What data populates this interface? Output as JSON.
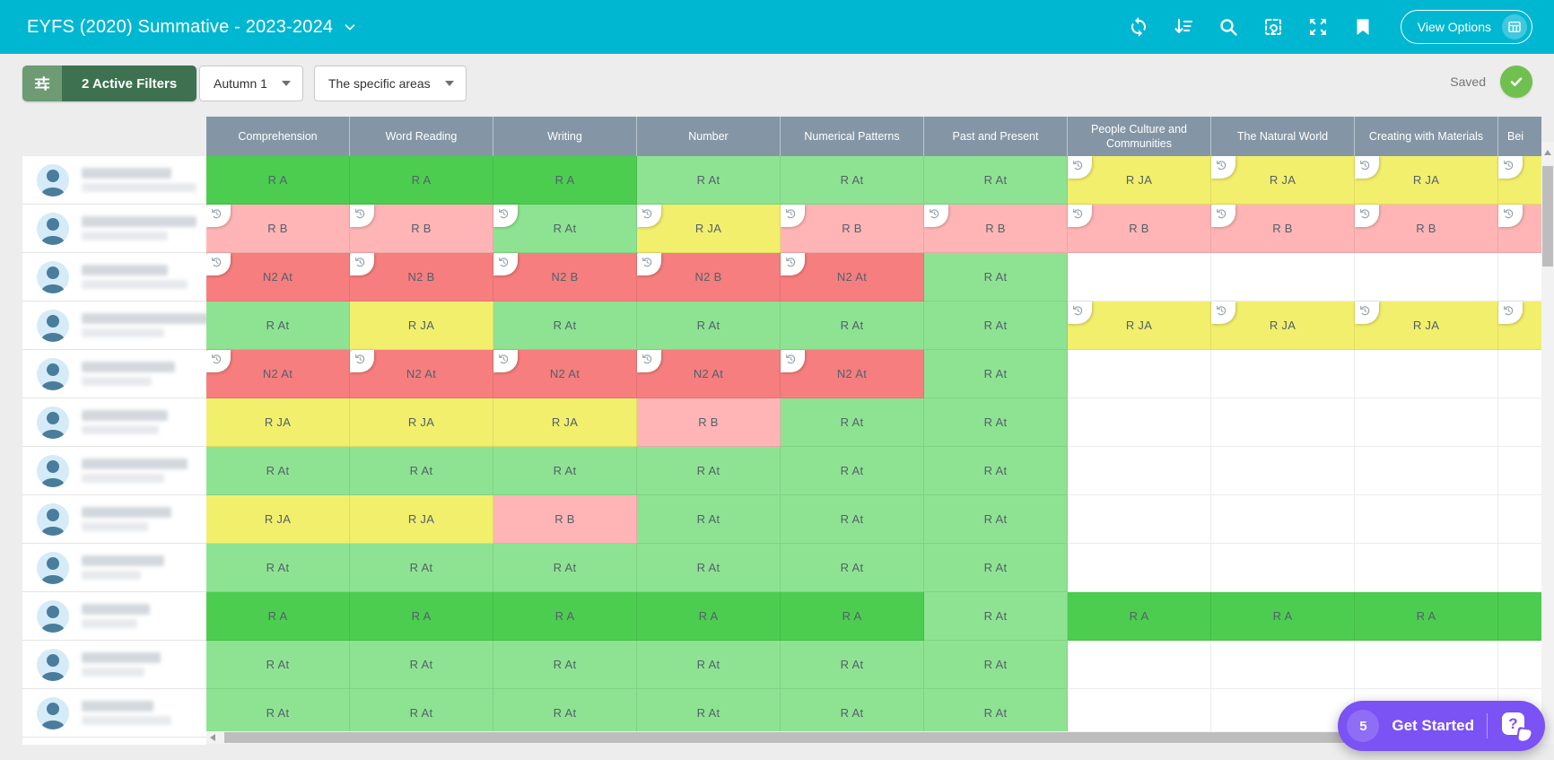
{
  "colors": {
    "appbar": "#00b7d2",
    "header": "#8496a6",
    "ca": "#4ccd50",
    "cat": "#8ee392",
    "cja": "#f2ef6d",
    "cb": "#ffb5b5",
    "cn2": "#f67e7e",
    "saved": "#70c04f",
    "purple": "#7b52f3",
    "filtlight": "#6e9a74",
    "filtdark": "#3e7150"
  },
  "app_bar": {
    "title": "EYFS (2020) Summative - 2023-2024",
    "icons": [
      "sync-icon",
      "sort-icon",
      "search-icon",
      "edit-grid-icon",
      "expand-icon",
      "bookmark-icon"
    ],
    "view_options_label": "View Options"
  },
  "toolbar": {
    "active_filters_label": "2 Active Filters",
    "term_dropdown_value": "Autumn 1",
    "area_dropdown_value": "The specific areas",
    "saved_label": "Saved"
  },
  "grid": {
    "columns": [
      "Comprehension",
      "Word Reading",
      "Writing",
      "Number",
      "Numerical Patterns",
      "Past and Present",
      "People Culture and Communities",
      "The Natural World",
      "Creating with Materials",
      "Bei"
    ],
    "students": [
      {
        "w1": 100,
        "w2": 128
      },
      {
        "w1": 128,
        "w2": 96
      },
      {
        "w1": 96,
        "w2": 118
      },
      {
        "w1": 150,
        "w2": 92
      },
      {
        "w1": 104,
        "w2": 78
      },
      {
        "w1": 96,
        "w2": 86
      },
      {
        "w1": 118,
        "w2": 92
      },
      {
        "w1": 100,
        "w2": 74
      },
      {
        "w1": 92,
        "w2": 66
      },
      {
        "w1": 76,
        "w2": 62
      },
      {
        "w1": 88,
        "w2": 70
      },
      {
        "w1": 80,
        "w2": 100
      }
    ],
    "rows": [
      {
        "cells": [
          {
            "v": "R A",
            "c": "a"
          },
          {
            "v": "R A",
            "c": "a"
          },
          {
            "v": "R A",
            "c": "a"
          },
          {
            "v": "R At",
            "c": "at"
          },
          {
            "v": "R At",
            "c": "at"
          },
          {
            "v": "R At",
            "c": "at"
          },
          {
            "v": "R JA",
            "c": "ja",
            "h": 1
          },
          {
            "v": "R JA",
            "c": "ja",
            "h": 1
          },
          {
            "v": "R JA",
            "c": "ja",
            "h": 1
          },
          {
            "v": "",
            "c": "ja",
            "h": 1
          }
        ]
      },
      {
        "cells": [
          {
            "v": "R B",
            "c": "b",
            "h": 1
          },
          {
            "v": "R B",
            "c": "b",
            "h": 1
          },
          {
            "v": "R At",
            "c": "at",
            "h": 1
          },
          {
            "v": "R JA",
            "c": "ja",
            "h": 1
          },
          {
            "v": "R B",
            "c": "b",
            "h": 1
          },
          {
            "v": "R B",
            "c": "b",
            "h": 1
          },
          {
            "v": "R B",
            "c": "b",
            "h": 1
          },
          {
            "v": "R B",
            "c": "b",
            "h": 1
          },
          {
            "v": "R B",
            "c": "b",
            "h": 1
          },
          {
            "v": "",
            "c": "b",
            "h": 1
          }
        ]
      },
      {
        "cells": [
          {
            "v": "N2 At",
            "c": "n2",
            "h": 1
          },
          {
            "v": "N2 B",
            "c": "n2",
            "h": 1
          },
          {
            "v": "N2 B",
            "c": "n2",
            "h": 1
          },
          {
            "v": "N2 B",
            "c": "n2",
            "h": 1
          },
          {
            "v": "N2 At",
            "c": "n2",
            "h": 1
          },
          {
            "v": "R At",
            "c": "at"
          },
          {
            "v": "",
            "c": ""
          },
          {
            "v": "",
            "c": ""
          },
          {
            "v": "",
            "c": ""
          },
          {
            "v": "",
            "c": ""
          }
        ]
      },
      {
        "cells": [
          {
            "v": "R At",
            "c": "at"
          },
          {
            "v": "R JA",
            "c": "ja"
          },
          {
            "v": "R At",
            "c": "at"
          },
          {
            "v": "R At",
            "c": "at"
          },
          {
            "v": "R At",
            "c": "at"
          },
          {
            "v": "R At",
            "c": "at"
          },
          {
            "v": "R JA",
            "c": "ja",
            "h": 1
          },
          {
            "v": "R JA",
            "c": "ja",
            "h": 1
          },
          {
            "v": "R JA",
            "c": "ja",
            "h": 1
          },
          {
            "v": "",
            "c": "ja",
            "h": 1
          }
        ]
      },
      {
        "cells": [
          {
            "v": "N2 At",
            "c": "n2",
            "h": 1
          },
          {
            "v": "N2 At",
            "c": "n2",
            "h": 1
          },
          {
            "v": "N2 At",
            "c": "n2",
            "h": 1
          },
          {
            "v": "N2 At",
            "c": "n2",
            "h": 1
          },
          {
            "v": "N2 At",
            "c": "n2",
            "h": 1
          },
          {
            "v": "R At",
            "c": "at"
          },
          {
            "v": "",
            "c": ""
          },
          {
            "v": "",
            "c": ""
          },
          {
            "v": "",
            "c": ""
          },
          {
            "v": "",
            "c": ""
          }
        ]
      },
      {
        "cells": [
          {
            "v": "R JA",
            "c": "ja"
          },
          {
            "v": "R JA",
            "c": "ja"
          },
          {
            "v": "R JA",
            "c": "ja"
          },
          {
            "v": "R B",
            "c": "b"
          },
          {
            "v": "R At",
            "c": "at"
          },
          {
            "v": "R At",
            "c": "at"
          },
          {
            "v": "",
            "c": ""
          },
          {
            "v": "",
            "c": ""
          },
          {
            "v": "",
            "c": ""
          },
          {
            "v": "",
            "c": ""
          }
        ]
      },
      {
        "cells": [
          {
            "v": "R At",
            "c": "at"
          },
          {
            "v": "R At",
            "c": "at"
          },
          {
            "v": "R At",
            "c": "at"
          },
          {
            "v": "R At",
            "c": "at"
          },
          {
            "v": "R At",
            "c": "at"
          },
          {
            "v": "R At",
            "c": "at"
          },
          {
            "v": "",
            "c": ""
          },
          {
            "v": "",
            "c": ""
          },
          {
            "v": "",
            "c": ""
          },
          {
            "v": "",
            "c": ""
          }
        ]
      },
      {
        "cells": [
          {
            "v": "R JA",
            "c": "ja"
          },
          {
            "v": "R JA",
            "c": "ja"
          },
          {
            "v": "R B",
            "c": "b"
          },
          {
            "v": "R At",
            "c": "at"
          },
          {
            "v": "R At",
            "c": "at"
          },
          {
            "v": "R At",
            "c": "at"
          },
          {
            "v": "",
            "c": ""
          },
          {
            "v": "",
            "c": ""
          },
          {
            "v": "",
            "c": ""
          },
          {
            "v": "",
            "c": ""
          }
        ]
      },
      {
        "cells": [
          {
            "v": "R At",
            "c": "at"
          },
          {
            "v": "R At",
            "c": "at"
          },
          {
            "v": "R At",
            "c": "at"
          },
          {
            "v": "R At",
            "c": "at"
          },
          {
            "v": "R At",
            "c": "at"
          },
          {
            "v": "R At",
            "c": "at"
          },
          {
            "v": "",
            "c": ""
          },
          {
            "v": "",
            "c": ""
          },
          {
            "v": "",
            "c": ""
          },
          {
            "v": "",
            "c": ""
          }
        ]
      },
      {
        "cells": [
          {
            "v": "R A",
            "c": "a"
          },
          {
            "v": "R A",
            "c": "a"
          },
          {
            "v": "R A",
            "c": "a"
          },
          {
            "v": "R A",
            "c": "a"
          },
          {
            "v": "R A",
            "c": "a"
          },
          {
            "v": "R At",
            "c": "at"
          },
          {
            "v": "R A",
            "c": "a"
          },
          {
            "v": "R A",
            "c": "a"
          },
          {
            "v": "R A",
            "c": "a"
          },
          {
            "v": "",
            "c": "a"
          }
        ]
      },
      {
        "cells": [
          {
            "v": "R At",
            "c": "at"
          },
          {
            "v": "R At",
            "c": "at"
          },
          {
            "v": "R At",
            "c": "at"
          },
          {
            "v": "R At",
            "c": "at"
          },
          {
            "v": "R At",
            "c": "at"
          },
          {
            "v": "R At",
            "c": "at"
          },
          {
            "v": "",
            "c": ""
          },
          {
            "v": "",
            "c": ""
          },
          {
            "v": "",
            "c": ""
          },
          {
            "v": "",
            "c": ""
          }
        ]
      },
      {
        "cells": [
          {
            "v": "R At",
            "c": "at"
          },
          {
            "v": "R At",
            "c": "at"
          },
          {
            "v": "R At",
            "c": "at"
          },
          {
            "v": "R At",
            "c": "at"
          },
          {
            "v": "R At",
            "c": "at"
          },
          {
            "v": "R At",
            "c": "at"
          },
          {
            "v": "",
            "c": ""
          },
          {
            "v": "",
            "c": ""
          },
          {
            "v": "",
            "c": ""
          },
          {
            "v": "",
            "c": ""
          }
        ]
      }
    ]
  },
  "help_button": {
    "badge": "5",
    "label": "Get Started"
  }
}
